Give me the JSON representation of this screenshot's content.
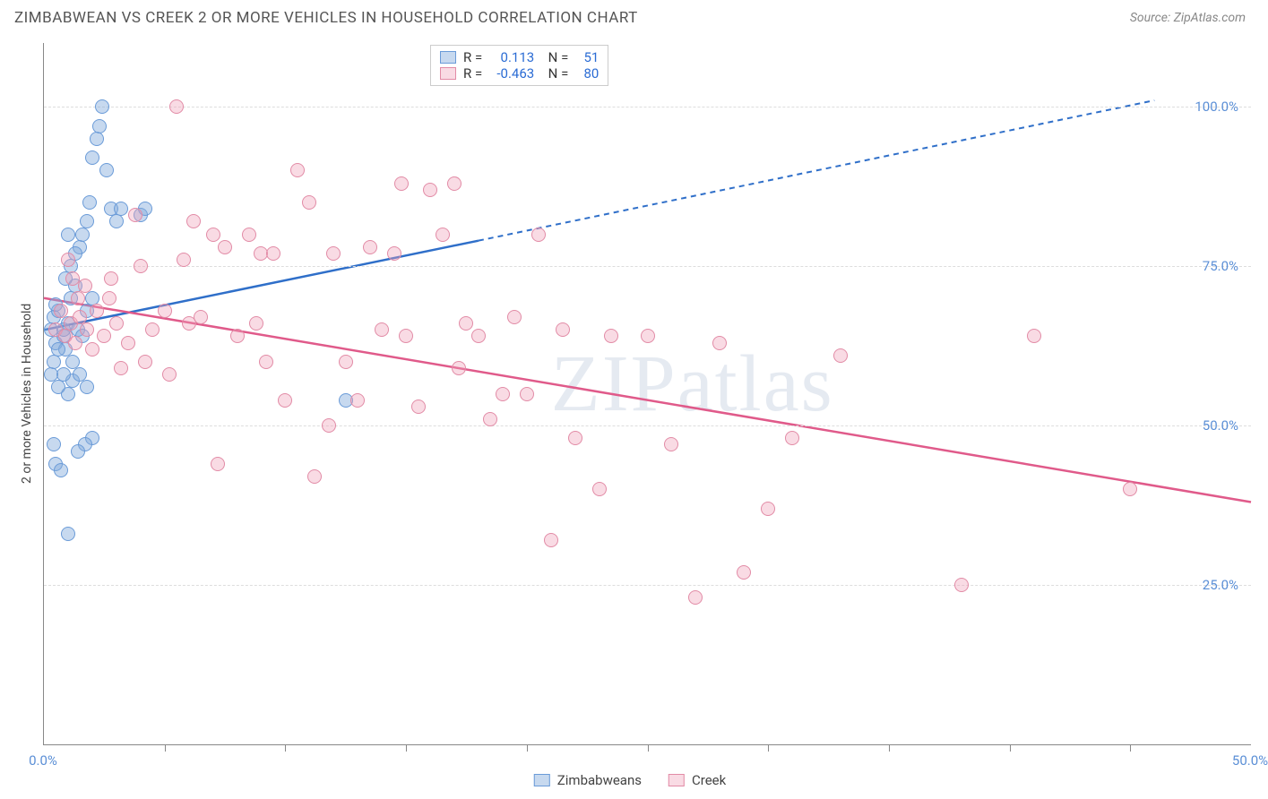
{
  "header": {
    "title": "ZIMBABWEAN VS CREEK 2 OR MORE VEHICLES IN HOUSEHOLD CORRELATION CHART",
    "source": "Source: ZipAtlas.com"
  },
  "chart": {
    "type": "scatter",
    "ylabel": "2 or more Vehicles in Household",
    "xlim": [
      0,
      50
    ],
    "ylim": [
      0,
      110
    ],
    "yticks": [
      {
        "v": 25,
        "label": "25.0%"
      },
      {
        "v": 50,
        "label": "50.0%"
      },
      {
        "v": 75,
        "label": "75.0%"
      },
      {
        "v": 100,
        "label": "100.0%"
      }
    ],
    "xticks_minor": [
      5,
      10,
      15,
      20,
      25,
      30,
      35,
      40,
      45
    ],
    "xtick_labels": [
      {
        "v": 0,
        "label": "0.0%"
      },
      {
        "v": 50,
        "label": "50.0%"
      }
    ],
    "background_color": "#ffffff",
    "grid_color": "#dddddd",
    "watermark": "ZIPatlas",
    "series": [
      {
        "name": "Zimbabweans",
        "color_fill": "rgba(130,170,220,0.45)",
        "color_stroke": "#6a9bd8",
        "line_color": "#2f6fc9",
        "marker_radius": 8,
        "R": "0.113",
        "N": "51",
        "trend": {
          "x1": 0,
          "y1": 65,
          "x2_solid": 18,
          "y2_solid": 79,
          "x2_dash": 46,
          "y2_dash": 101
        },
        "points": [
          [
            0.3,
            65
          ],
          [
            0.4,
            67
          ],
          [
            0.5,
            63
          ],
          [
            0.6,
            68
          ],
          [
            0.8,
            64
          ],
          [
            0.9,
            62
          ],
          [
            1.0,
            66
          ],
          [
            1.1,
            70
          ],
          [
            1.2,
            60
          ],
          [
            1.3,
            72
          ],
          [
            1.5,
            78
          ],
          [
            1.6,
            80
          ],
          [
            1.8,
            82
          ],
          [
            1.9,
            85
          ],
          [
            2.0,
            92
          ],
          [
            2.2,
            95
          ],
          [
            2.3,
            97
          ],
          [
            2.4,
            100
          ],
          [
            2.6,
            90
          ],
          [
            2.8,
            84
          ],
          [
            3.0,
            82
          ],
          [
            3.2,
            84
          ],
          [
            4.0,
            83
          ],
          [
            4.2,
            84
          ],
          [
            1.0,
            55
          ],
          [
            1.2,
            57
          ],
          [
            1.5,
            58
          ],
          [
            0.8,
            58
          ],
          [
            0.6,
            56
          ],
          [
            1.8,
            56
          ],
          [
            2.0,
            48
          ],
          [
            1.7,
            47
          ],
          [
            1.4,
            46
          ],
          [
            0.5,
            44
          ],
          [
            0.7,
            43
          ],
          [
            0.4,
            47
          ],
          [
            1.0,
            33
          ],
          [
            0.3,
            58
          ],
          [
            0.4,
            60
          ],
          [
            0.6,
            62
          ],
          [
            0.8,
            65
          ],
          [
            0.5,
            69
          ],
          [
            0.9,
            73
          ],
          [
            1.1,
            75
          ],
          [
            1.3,
            77
          ],
          [
            1.0,
            80
          ],
          [
            1.4,
            65
          ],
          [
            1.6,
            64
          ],
          [
            12.5,
            54
          ],
          [
            1.8,
            68
          ],
          [
            2.0,
            70
          ]
        ]
      },
      {
        "name": "Creek",
        "color_fill": "rgba(240,160,185,0.38)",
        "color_stroke": "#e28ba6",
        "line_color": "#e05a8a",
        "marker_radius": 8,
        "R": "-0.463",
        "N": "80",
        "trend": {
          "x1": 0,
          "y1": 70,
          "x2_solid": 50,
          "y2_solid": 38
        },
        "points": [
          [
            0.5,
            65
          ],
          [
            0.7,
            68
          ],
          [
            0.9,
            64
          ],
          [
            1.1,
            66
          ],
          [
            1.3,
            63
          ],
          [
            1.5,
            67
          ],
          [
            1.8,
            65
          ],
          [
            2.0,
            62
          ],
          [
            2.2,
            68
          ],
          [
            2.5,
            64
          ],
          [
            2.7,
            70
          ],
          [
            3.0,
            66
          ],
          [
            3.5,
            63
          ],
          [
            4.0,
            75
          ],
          [
            4.5,
            65
          ],
          [
            5.0,
            68
          ],
          [
            5.5,
            100
          ],
          [
            5.8,
            76
          ],
          [
            6.0,
            66
          ],
          [
            6.5,
            67
          ],
          [
            7.0,
            80
          ],
          [
            7.5,
            78
          ],
          [
            8.0,
            64
          ],
          [
            8.5,
            80
          ],
          [
            9.0,
            77
          ],
          [
            10.0,
            54
          ],
          [
            10.5,
            90
          ],
          [
            11.0,
            85
          ],
          [
            11.2,
            42
          ],
          [
            12.0,
            77
          ],
          [
            13.0,
            54
          ],
          [
            14.0,
            65
          ],
          [
            14.5,
            77
          ],
          [
            15.0,
            64
          ],
          [
            15.5,
            53
          ],
          [
            16.0,
            87
          ],
          [
            16.5,
            80
          ],
          [
            17.0,
            88
          ],
          [
            17.5,
            66
          ],
          [
            18.0,
            64
          ],
          [
            18.5,
            51
          ],
          [
            19.0,
            55
          ],
          [
            20.0,
            55
          ],
          [
            20.5,
            80
          ],
          [
            21.0,
            32
          ],
          [
            21.5,
            65
          ],
          [
            22.0,
            48
          ],
          [
            23.0,
            40
          ],
          [
            25.0,
            64
          ],
          [
            26.0,
            47
          ],
          [
            27.0,
            23
          ],
          [
            28.0,
            63
          ],
          [
            29.0,
            27
          ],
          [
            30.0,
            37
          ],
          [
            31.0,
            48
          ],
          [
            33.0,
            61
          ],
          [
            38.0,
            25
          ],
          [
            41.0,
            64
          ],
          [
            45.0,
            40
          ],
          [
            5.2,
            58
          ],
          [
            4.2,
            60
          ],
          [
            3.2,
            59
          ],
          [
            2.8,
            73
          ],
          [
            1.0,
            76
          ],
          [
            1.2,
            73
          ],
          [
            1.4,
            70
          ],
          [
            1.7,
            72
          ],
          [
            7.2,
            44
          ],
          [
            8.8,
            66
          ],
          [
            9.5,
            77
          ],
          [
            12.5,
            60
          ],
          [
            19.5,
            67
          ],
          [
            6.2,
            82
          ],
          [
            3.8,
            83
          ],
          [
            14.8,
            88
          ],
          [
            23.5,
            64
          ],
          [
            17.2,
            59
          ],
          [
            13.5,
            78
          ],
          [
            11.8,
            50
          ],
          [
            9.2,
            60
          ]
        ]
      }
    ],
    "legend_bottom": [
      {
        "label": "Zimbabweans",
        "fill": "rgba(130,170,220,0.45)",
        "stroke": "#6a9bd8"
      },
      {
        "label": "Creek",
        "fill": "rgba(240,160,185,0.38)",
        "stroke": "#e28ba6"
      }
    ]
  }
}
